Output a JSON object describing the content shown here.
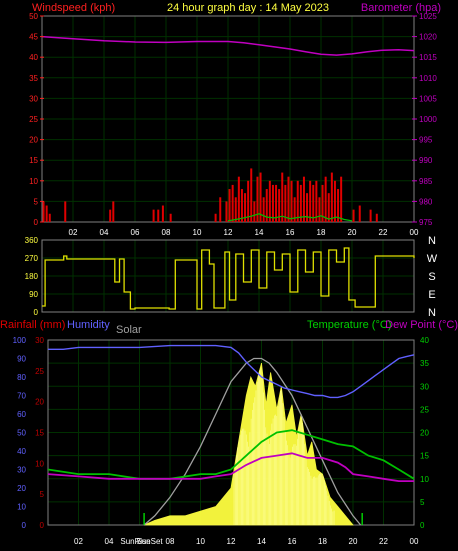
{
  "header": {
    "title": "24 hour graph day : 14 May 2023",
    "left_label": "Windspeed (kph)",
    "right_label": "Barometer (hpa)"
  },
  "bottom_header": {
    "rain_label": "Rainfall (mm)",
    "humidity_label": "Humidity",
    "solar_label": "Solar",
    "temp_label": "Temperature (°C)",
    "dew_label": "Dew Point (°C)",
    "sunrise_label": "SunRise",
    "sunset_label": "SunSet"
  },
  "colors": {
    "wind_axis": "#ff2020",
    "baro": "#c000c0",
    "wind_gust": "#e00000",
    "wind_avg": "#00c000",
    "direction": "#e0e000",
    "humidity": "#6060ff",
    "solar": "#ffff40",
    "solar_max": "#a0a0a0",
    "temperature": "#00c000",
    "dew": "#c000c0",
    "rain_axis": "#c00000",
    "green_axis": "#00d000",
    "grid": "#003000"
  },
  "chart_data": [
    {
      "type": "bar",
      "name": "wind",
      "title": "24 hour graph day : 14 May 2023",
      "ylabel": "Windspeed (kph)",
      "y2label": "Barometer (hpa)",
      "xticks": [
        "02",
        "04",
        "06",
        "08",
        "10",
        "12",
        "14",
        "16",
        "18",
        "20",
        "22",
        "00"
      ],
      "yticks": [
        0,
        5,
        10,
        15,
        20,
        25,
        30,
        35,
        40,
        45,
        50
      ],
      "y2ticks": [
        975,
        980,
        985,
        990,
        995,
        1000,
        1005,
        1010,
        1015,
        1020,
        1025
      ],
      "ylim": [
        0,
        50
      ],
      "y2lim": [
        975,
        1025
      ],
      "baro_x": [
        0,
        2,
        4,
        6,
        8,
        10,
        12,
        13,
        14,
        15,
        16,
        17,
        18,
        19,
        20,
        21,
        22,
        23,
        24
      ],
      "baro_y": [
        1020,
        1019.5,
        1019,
        1018.7,
        1018.6,
        1018.8,
        1018.8,
        1018.5,
        1018,
        1017.5,
        1017,
        1016.3,
        1015.7,
        1015.5,
        1015.8,
        1016.3,
        1016.7,
        1016.8,
        1016.6
      ],
      "gust_x": [
        0.1,
        0.3,
        0.5,
        1.5,
        4.4,
        4.6,
        7.2,
        7.5,
        7.8,
        8.3,
        11.2,
        11.5,
        11.9,
        12.1,
        12.3,
        12.5,
        12.7,
        12.9,
        13.1,
        13.3,
        13.5,
        13.7,
        13.9,
        14.1,
        14.3,
        14.5,
        14.7,
        14.9,
        15.1,
        15.3,
        15.5,
        15.7,
        15.9,
        16.1,
        16.3,
        16.5,
        16.7,
        16.9,
        17.1,
        17.3,
        17.5,
        17.7,
        17.9,
        18.1,
        18.3,
        18.5,
        18.7,
        18.9,
        19.1,
        19.3,
        20.1,
        20.5,
        21.2,
        21.6
      ],
      "gust_y": [
        5,
        4,
        2,
        5,
        3,
        5,
        3,
        3,
        4,
        2,
        2,
        6,
        5,
        8,
        9,
        6,
        11,
        8,
        7,
        10,
        13,
        5,
        11,
        12,
        6,
        8,
        10,
        9,
        9,
        8,
        12,
        9,
        11,
        10,
        6,
        10,
        9,
        11,
        7,
        10,
        9,
        10,
        6,
        9,
        11,
        7,
        12,
        10,
        8,
        11,
        3,
        4,
        3,
        2
      ],
      "avg_x": [
        12,
        12.5,
        13,
        13.5,
        14,
        14.5,
        15,
        15.5,
        16,
        16.5,
        17,
        17.5,
        18,
        18.5,
        19,
        19.5,
        20
      ],
      "avg_y": [
        0.3,
        0.6,
        1.0,
        1.4,
        2.0,
        1.2,
        1.0,
        1.4,
        0.8,
        1.1,
        1.3,
        1.0,
        1.5,
        0.7,
        1.2,
        0.6,
        0.3
      ]
    },
    {
      "type": "line",
      "name": "direction",
      "yticks": [
        "360",
        "270",
        "180",
        "90",
        "0"
      ],
      "ylim": [
        0,
        360
      ],
      "compass": [
        "N",
        "W",
        "S",
        "E",
        "N"
      ],
      "x": [
        0,
        0.2,
        1.4,
        1.6,
        4.5,
        4.7,
        5.0,
        5.3,
        5.7,
        6.0,
        8.2,
        8.6,
        10.0,
        10.3,
        10.8,
        11.1,
        11.8,
        12.1,
        12.5,
        13.0,
        13.5,
        14.0,
        14.5,
        15.0,
        15.5,
        16.0,
        16.5,
        17.0,
        17.5,
        18.0,
        18.5,
        19.0,
        19.5,
        19.8,
        20.2,
        21.2,
        21.5,
        21.8,
        24
      ],
      "y": [
        30,
        260,
        280,
        265,
        265,
        150,
        265,
        100,
        15,
        20,
        15,
        260,
        15,
        310,
        240,
        20,
        300,
        60,
        290,
        150,
        310,
        120,
        300,
        210,
        290,
        100,
        310,
        200,
        300,
        80,
        310,
        250,
        320,
        60,
        25,
        25,
        280,
        280,
        270
      ]
    },
    {
      "type": "line",
      "name": "weather",
      "ylabel_left": "Rainfall (mm)",
      "ylabel_humidity": "Humidity",
      "ylabel_right": "Temperature (°C)",
      "ylabel_right2": "Dew Point (°C)",
      "xticks": [
        "02",
        "04",
        "SunRise",
        "08",
        "10",
        "12",
        "14",
        "16",
        "18",
        "20",
        "22",
        "00"
      ],
      "sunset_label": "SunSet",
      "humidity_ticks": [
        0,
        10,
        20,
        30,
        40,
        50,
        60,
        70,
        80,
        90,
        100
      ],
      "rain_ticks": [
        0,
        5,
        10,
        15,
        20,
        25,
        30
      ],
      "temp_ticks": [
        0,
        5,
        10,
        15,
        20,
        25,
        30,
        35,
        40
      ],
      "humidity_x": [
        0,
        1,
        2,
        4,
        6,
        8,
        10,
        11,
        12,
        12.5,
        13,
        13.5,
        14,
        14.5,
        15,
        15.5,
        16,
        16.5,
        17,
        17.5,
        18,
        18.5,
        19,
        19.5,
        20,
        20.5,
        21,
        21.5,
        22,
        22.5,
        23,
        23.5,
        24
      ],
      "humidity_y": [
        95,
        95,
        96,
        96,
        96,
        97,
        97,
        97,
        96,
        93,
        88,
        84,
        80,
        78,
        76,
        74,
        73,
        72,
        71,
        70,
        70,
        69,
        69,
        70,
        72,
        75,
        78,
        81,
        84,
        87,
        90,
        91,
        92
      ],
      "temp_x": [
        0,
        2,
        4,
        6,
        8,
        10,
        11,
        12,
        13,
        14,
        15,
        16,
        16.5,
        17,
        18,
        19,
        20,
        21,
        22,
        23,
        24
      ],
      "temp_y": [
        12,
        11,
        11,
        10,
        10,
        11,
        11,
        12,
        15,
        18,
        20,
        20.5,
        20,
        19.5,
        18.5,
        17.5,
        17,
        15,
        14,
        12,
        10
      ],
      "dew_x": [
        0,
        2,
        4,
        6,
        8,
        10,
        11,
        12,
        13,
        14,
        15,
        16,
        16.5,
        17,
        18,
        19,
        19.5,
        20,
        21,
        22,
        23,
        24
      ],
      "dew_y": [
        11,
        10.5,
        10,
        10,
        10,
        10,
        10.5,
        11,
        13,
        14.5,
        15,
        15.5,
        15,
        14.5,
        14.5,
        13.5,
        12.5,
        11,
        10.5,
        10,
        9.5,
        9.5
      ],
      "solar_max_x": [
        6.3,
        7,
        8,
        9,
        10,
        11,
        12,
        12.5,
        13,
        13.5,
        14,
        14.5,
        15,
        16,
        17,
        18,
        19,
        20,
        20.5
      ],
      "solar_max_y": [
        0,
        2,
        6,
        11,
        17,
        24,
        31,
        33,
        35,
        36,
        36,
        35,
        33,
        28,
        21,
        14,
        7,
        2,
        0
      ],
      "solar_x": [
        6.3,
        7,
        8,
        9,
        10,
        11,
        12,
        12.5,
        13,
        13.3,
        13.6,
        14,
        14.3,
        14.6,
        15,
        15.3,
        15.6,
        16,
        16.3,
        16.6,
        17,
        17.3,
        17.6,
        18,
        18.5,
        19,
        19.5,
        20
      ],
      "solar_y": [
        0,
        1,
        2,
        2,
        3,
        4,
        8,
        18,
        28,
        32,
        30,
        35,
        26,
        33,
        25,
        30,
        22,
        26,
        19,
        24,
        15,
        18,
        12,
        11,
        6,
        4,
        2,
        0
      ],
      "solar_ylim": [
        0,
        40
      ]
    }
  ]
}
